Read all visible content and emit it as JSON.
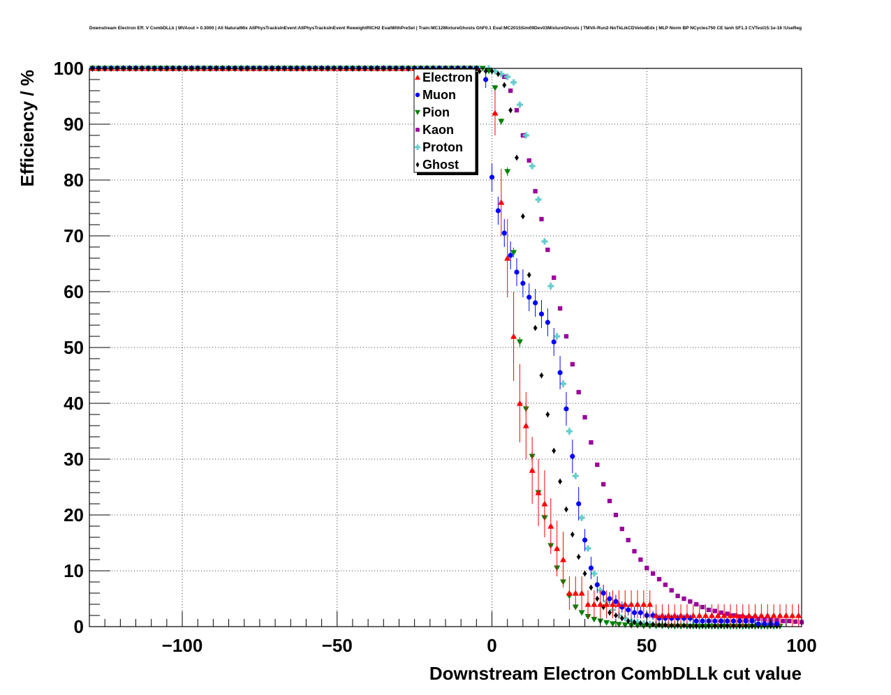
{
  "chart_data": {
    "type": "scatter",
    "title": "Downstream Electron Eff. V CombDLLk | MVAout > 0.3000 | All NaturalMix AllPhysTracksInEvent:AllPhysTracksInEvent ReweightRICH2 EvalWithPreSel | Train:MC12MixtureGhosts GhF0.1 Eval:MC2015Sim09Dev03MixtureGhosts | TMVA-Run2-NoTkLikCDVelodEdx | MLP Norm BP NCycles750 CE tanh SF1.3 CVTest15:1e-16 !UseReg",
    "xlabel": "Downstream Electron CombDLLk cut value",
    "ylabel": "Efficiency / %",
    "xlim": [
      -130,
      100
    ],
    "ylim": [
      0,
      100
    ],
    "xticks": [
      -100,
      -50,
      0,
      50,
      100
    ],
    "xtick_labels": [
      "−100",
      "−50",
      "0",
      "50",
      "100"
    ],
    "yticks": [
      0,
      10,
      20,
      30,
      40,
      50,
      60,
      70,
      80,
      90,
      100
    ],
    "grid": true,
    "legend_position": "top-center",
    "series": [
      {
        "name": "Electron",
        "color": "#ff0000",
        "marker": "triangle-up",
        "x": [
          1,
          3,
          5,
          7,
          9,
          11,
          13,
          15,
          17,
          19,
          21,
          23,
          25,
          27,
          29,
          31,
          33,
          35,
          37,
          39,
          41,
          43,
          45,
          47,
          49,
          51,
          53,
          55,
          57,
          59,
          61,
          63,
          65,
          67,
          69,
          71,
          73,
          75,
          77,
          79,
          81,
          83,
          85,
          87,
          89,
          91,
          93,
          95,
          97,
          99
        ],
        "y": [
          92,
          76,
          66,
          52,
          40,
          36,
          28,
          24,
          22,
          18,
          14,
          12,
          6,
          6,
          6,
          4,
          4,
          4,
          4,
          4,
          4,
          4,
          4,
          4,
          4,
          4,
          2,
          2,
          2,
          2,
          2,
          2,
          2,
          2,
          2,
          2,
          2,
          2,
          2,
          2,
          2,
          2,
          2,
          2,
          2,
          2,
          2,
          2,
          2,
          2
        ],
        "err": [
          4,
          6,
          7,
          8,
          7,
          6,
          6,
          6,
          6,
          5,
          5,
          5,
          3,
          3,
          3,
          2.5,
          2.5,
          2.5,
          2.5,
          2.5,
          2.5,
          2.5,
          2.5,
          2.5,
          2.5,
          2.5,
          2,
          2,
          2,
          2,
          2,
          2,
          2,
          2,
          2,
          2,
          2,
          2,
          2,
          2,
          2,
          2,
          2,
          2,
          2,
          2,
          2,
          2,
          2,
          2
        ]
      },
      {
        "name": "Muon",
        "color": "#0000ff",
        "marker": "circle",
        "x": [
          -2,
          0,
          2,
          4,
          6,
          8,
          10,
          12,
          14,
          16,
          18,
          20,
          22,
          24,
          26,
          28,
          30,
          32,
          34,
          36,
          38,
          40,
          42,
          44,
          46,
          48,
          50,
          52,
          54,
          56,
          58,
          60,
          62,
          64,
          66,
          68,
          70,
          72,
          74,
          76,
          78,
          80,
          82,
          84,
          86,
          88,
          90,
          92
        ],
        "y": [
          98,
          80.5,
          74.5,
          70.5,
          66.5,
          63.5,
          61.5,
          59,
          58,
          56,
          54.5,
          51,
          45.5,
          39,
          30.5,
          22,
          15.5,
          10.5,
          7.5,
          6,
          5,
          4.5,
          3.5,
          3,
          2.5,
          2.5,
          2,
          2,
          1.5,
          1.5,
          1.5,
          1.5,
          1.5,
          1.5,
          1,
          1,
          1,
          1,
          1,
          1,
          1,
          1,
          1,
          1,
          0.5,
          0.5,
          0.5,
          0.5
        ],
        "err": [
          1.5,
          2.5,
          2.5,
          2.5,
          2.5,
          2.5,
          2.5,
          2.5,
          2.5,
          2.5,
          2.5,
          2.5,
          3,
          3,
          3,
          3,
          2,
          2,
          1.5,
          1.5,
          1.2,
          1.2,
          1,
          1,
          1,
          1,
          0.8,
          0.8,
          0.7,
          0.7,
          0.7,
          0.7,
          0.7,
          0.7,
          0.5,
          0.5,
          0.5,
          0.5,
          0.5,
          0.5,
          0.5,
          0.5,
          0.5,
          0.5,
          0.3,
          0.3,
          0.3,
          0.3
        ]
      },
      {
        "name": "Pion",
        "color": "#008000",
        "marker": "triangle-down",
        "x": [
          -3,
          -1,
          1,
          3,
          5,
          7,
          9,
          11,
          13,
          15,
          17,
          19,
          21,
          23,
          25,
          27,
          29,
          31,
          33,
          35,
          37,
          39,
          41,
          43,
          45,
          47,
          49,
          51,
          53,
          55,
          57,
          59,
          61,
          63,
          65,
          67,
          69,
          71,
          73,
          75,
          77,
          79,
          81,
          83,
          85,
          87,
          89,
          91,
          93
        ],
        "y": [
          100,
          99.5,
          96.5,
          90.5,
          81.5,
          67,
          51,
          39,
          30.5,
          24,
          19.5,
          14.5,
          10.5,
          8,
          5.5,
          3.5,
          2.5,
          1.8,
          1.3,
          1,
          0.7,
          0.5,
          0.4,
          0.3,
          0.2,
          0.2,
          0.1,
          0.1,
          0.1,
          0.1,
          0.05,
          0.05,
          0.05,
          0.05,
          0.05,
          0.05,
          0.05,
          0.05,
          0.05,
          0.05,
          0.05,
          0.05,
          0.05,
          0.05,
          0.05,
          0.05,
          0.05,
          0.05,
          0.05
        ],
        "err": [
          0.3,
          0.4,
          0.5,
          0.6,
          0.8,
          0.9,
          0.9,
          0.9,
          0.9,
          0.8,
          0.7,
          0.6,
          0.6,
          0.5,
          0.4,
          0.3,
          0.3,
          0.2,
          0.2,
          0.2,
          0.1,
          0.1,
          0.1,
          0.1,
          0.1,
          0.1,
          0.1,
          0.1,
          0.1,
          0.1,
          0.05,
          0.05,
          0.05,
          0.05,
          0.05,
          0.05,
          0.05,
          0.05,
          0.05,
          0.05,
          0.05,
          0.05,
          0.05,
          0.05,
          0.05,
          0.05,
          0.05,
          0.05,
          0.05
        ]
      },
      {
        "name": "Kaon",
        "color": "#990099",
        "marker": "square",
        "x": [
          4,
          6,
          8,
          10,
          12,
          14,
          16,
          18,
          20,
          22,
          24,
          26,
          28,
          30,
          32,
          34,
          36,
          38,
          40,
          42,
          44,
          46,
          48,
          50,
          52,
          54,
          56,
          58,
          60,
          62,
          64,
          66,
          68,
          70,
          72,
          74,
          76,
          78,
          80,
          82,
          84,
          86,
          88,
          90,
          92,
          94,
          96,
          98,
          100
        ],
        "y": [
          98.5,
          96,
          92.5,
          88,
          83.5,
          78,
          73,
          67.5,
          62.5,
          57,
          52,
          47,
          42,
          37.5,
          33,
          29,
          25.5,
          22.5,
          20,
          17.5,
          15.5,
          13.5,
          12,
          10.5,
          9.5,
          8.5,
          7.5,
          6.5,
          5.5,
          5,
          4.5,
          4,
          3.5,
          3,
          2.8,
          2.5,
          2.3,
          2,
          1.8,
          1.6,
          1.5,
          1.4,
          1.3,
          1.2,
          1.1,
          1,
          1,
          0.9,
          0.8
        ],
        "err": [
          0.3,
          0.3,
          0.3,
          0.3,
          0.3,
          0.3,
          0.3,
          0.3,
          0.3,
          0.3,
          0.3,
          0.3,
          0.3,
          0.3,
          0.3,
          0.3,
          0.3,
          0.3,
          0.3,
          0.3,
          0.3,
          0.3,
          0.3,
          0.3,
          0.3,
          0.3,
          0.3,
          0.3,
          0.3,
          0.3,
          0.3,
          0.3,
          0.3,
          0.3,
          0.3,
          0.3,
          0.3,
          0.3,
          0.3,
          0.3,
          0.3,
          0.3,
          0.3,
          0.3,
          0.3,
          0.3,
          0.3,
          0.3,
          0.3
        ]
      },
      {
        "name": "Proton",
        "color": "#66cccc",
        "marker": "cross",
        "x": [
          -1,
          1,
          3,
          5,
          7,
          9,
          11,
          13,
          15,
          17,
          19,
          21,
          23,
          25,
          27,
          29,
          31,
          33,
          35,
          37,
          39,
          41,
          43,
          45,
          47,
          49,
          51,
          53,
          55,
          57,
          59,
          61,
          63,
          65,
          67,
          69,
          71,
          73,
          75,
          77,
          79,
          81,
          83,
          85,
          87,
          89,
          91
        ],
        "y": [
          100,
          99.5,
          99,
          98.5,
          97.5,
          93.5,
          88,
          82.5,
          76.5,
          69,
          61,
          52,
          43.5,
          35,
          27,
          19.5,
          14,
          9.5,
          6.5,
          4.5,
          3,
          2,
          1.5,
          1,
          0.8,
          0.6,
          0.5,
          0.4,
          0.3,
          0.3,
          0.2,
          0.2,
          0.2,
          0.2,
          0.1,
          0.1,
          0.1,
          0.1,
          0.1,
          0.1,
          0.1,
          0.1,
          0.1,
          0.1,
          0.1,
          0.1,
          0.1
        ],
        "err": [
          0.1,
          0.2,
          0.2,
          0.2,
          0.3,
          0.4,
          0.5,
          0.5,
          0.6,
          0.6,
          0.7,
          0.7,
          0.7,
          0.7,
          0.6,
          0.6,
          0.5,
          0.4,
          0.3,
          0.3,
          0.2,
          0.2,
          0.1,
          0.1,
          0.1,
          0.1,
          0.1,
          0.1,
          0.1,
          0.1,
          0.1,
          0.1,
          0.1,
          0.1,
          0.1,
          0.1,
          0.1,
          0.1,
          0.1,
          0.1,
          0.1,
          0.1,
          0.1,
          0.1,
          0.1,
          0.1,
          0.1
        ]
      },
      {
        "name": "Ghost",
        "color": "#000000",
        "marker": "diamond",
        "x": [
          -4,
          -2,
          0,
          2,
          4,
          6,
          8,
          10,
          12,
          14,
          16,
          18,
          20,
          22,
          24,
          26,
          28,
          30,
          32,
          34,
          36,
          38,
          40,
          42,
          44,
          46,
          48,
          50,
          52,
          54,
          56,
          58,
          60,
          62,
          64,
          66,
          68,
          70,
          72,
          74,
          76,
          78,
          80,
          82,
          84,
          86,
          88,
          90,
          92
        ],
        "y": [
          99.5,
          99.5,
          99.5,
          99,
          97,
          92.5,
          84,
          73.5,
          63,
          53.5,
          45,
          38,
          31.5,
          26,
          21,
          16.5,
          12.5,
          9.5,
          7,
          5,
          3.5,
          2.5,
          2,
          1.5,
          1,
          0.8,
          0.6,
          0.5,
          0.4,
          0.3,
          0.3,
          0.2,
          0.2,
          0.2,
          0.1,
          0.1,
          0.1,
          0.1,
          0.1,
          0.1,
          0.1,
          0.1,
          0.1,
          0.1,
          0.1,
          0.1,
          0.1,
          0.1,
          0.1
        ],
        "err": [
          0.1,
          0.1,
          0.1,
          0.1,
          0.2,
          0.3,
          0.3,
          0.4,
          0.4,
          0.4,
          0.4,
          0.4,
          0.4,
          0.4,
          0.4,
          0.3,
          0.3,
          0.3,
          0.2,
          0.2,
          0.2,
          0.1,
          0.1,
          0.1,
          0.1,
          0.1,
          0.1,
          0.1,
          0.1,
          0.1,
          0.1,
          0.1,
          0.1,
          0.1,
          0.1,
          0.1,
          0.1,
          0.1,
          0.1,
          0.1,
          0.1,
          0.1,
          0.1,
          0.1,
          0.1,
          0.1,
          0.1,
          0.1,
          0.1
        ]
      }
    ]
  }
}
